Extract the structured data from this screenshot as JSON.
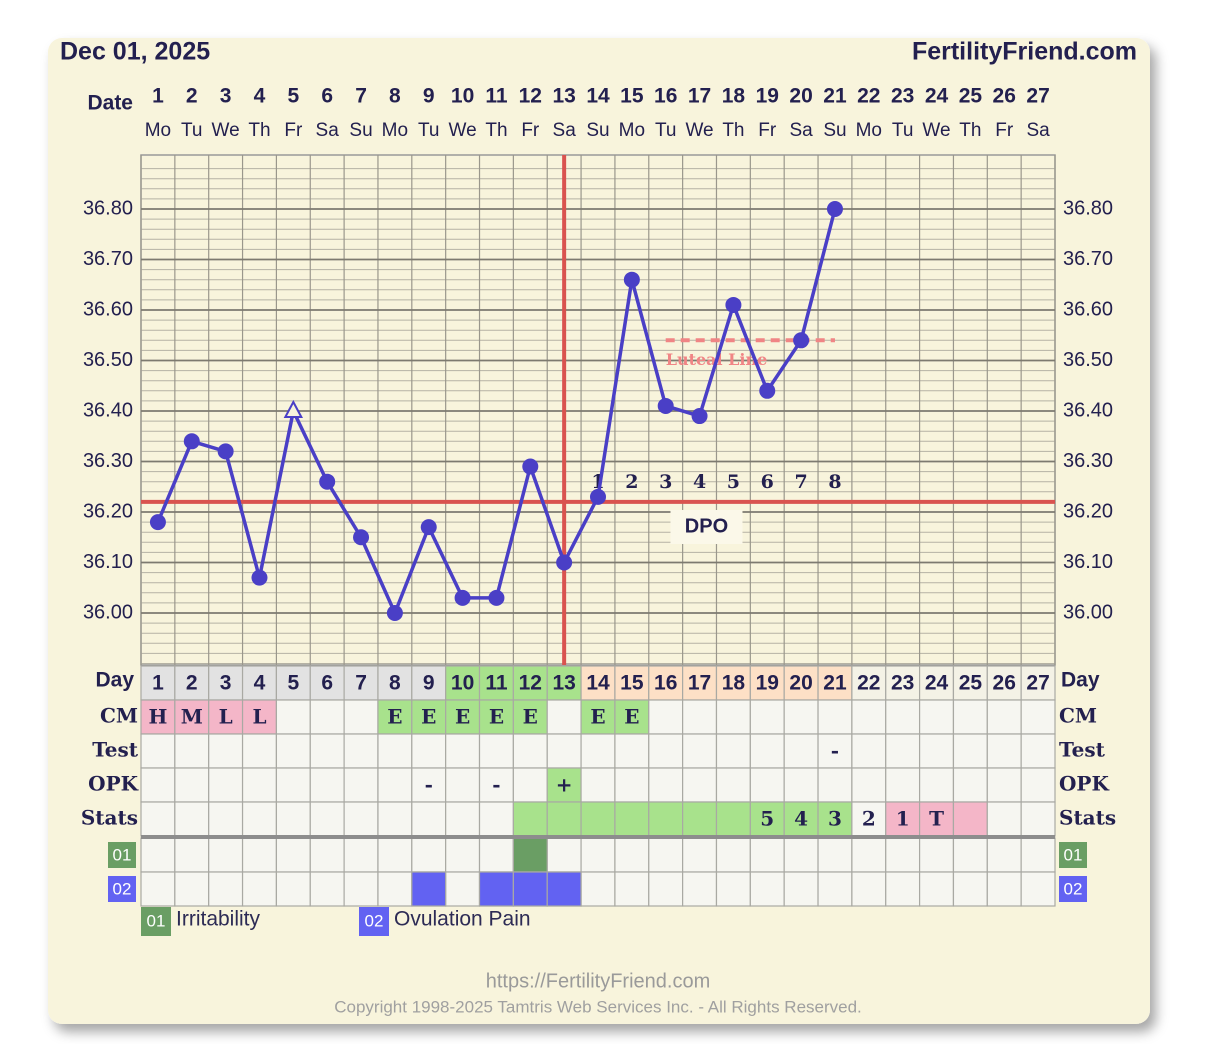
{
  "header": {
    "date": "Dec 01, 2025",
    "site": "FertilityFriend.com"
  },
  "chart_data": {
    "type": "line",
    "x_label": "Date",
    "x": [
      1,
      2,
      3,
      4,
      5,
      6,
      7,
      8,
      9,
      10,
      11,
      12,
      13,
      14,
      15,
      16,
      17,
      18,
      19,
      20,
      21,
      22,
      23,
      24,
      25,
      26,
      27
    ],
    "weekdays": [
      "Mo",
      "Tu",
      "We",
      "Th",
      "Fr",
      "Sa",
      "Su",
      "Mo",
      "Tu",
      "We",
      "Th",
      "Fr",
      "Sa",
      "Su",
      "Mo",
      "Tu",
      "We",
      "Th",
      "Fr",
      "Sa",
      "Su",
      "Mo",
      "Tu",
      "We",
      "Th",
      "Fr",
      "Sa"
    ],
    "xlim": [
      0.5,
      27.5
    ],
    "series": [
      {
        "color": "#4a3fc6",
        "values": [
          36.18,
          36.34,
          36.32,
          36.07,
          36.4,
          36.26,
          36.15,
          36.0,
          36.17,
          36.03,
          36.03,
          36.29,
          36.1,
          36.23,
          36.66,
          36.41,
          36.39,
          36.61,
          36.44,
          36.54,
          36.8,
          null,
          null,
          null,
          null,
          null,
          null
        ],
        "markers": [
          "circle",
          "circle",
          "circle",
          "circle",
          "open-triangle",
          "circle",
          "circle",
          "circle",
          "circle",
          "circle",
          "circle",
          "circle",
          "circle",
          "circle",
          "circle",
          "circle",
          "circle",
          "circle",
          "circle",
          "circle",
          "circle",
          null,
          null,
          null,
          null,
          null,
          null
        ]
      }
    ],
    "ylim": [
      35.9,
      36.9
    ],
    "yticks": [
      {
        "value": 36.0,
        "label": "36.00"
      },
      {
        "value": 36.1,
        "label": "36.10"
      },
      {
        "value": 36.2,
        "label": "36.20"
      },
      {
        "value": 36.3,
        "label": "36.30"
      },
      {
        "value": 36.4,
        "label": "36.40"
      },
      {
        "value": 36.5,
        "label": "36.50"
      },
      {
        "value": 36.6,
        "label": "36.60"
      },
      {
        "value": 36.7,
        "label": "36.70"
      },
      {
        "value": 36.8,
        "label": "36.80"
      }
    ],
    "grid": true,
    "coverline": {
      "value": 36.22,
      "color": "#d9534f"
    },
    "ovulation": {
      "x": 13,
      "color": "#d9534f"
    },
    "luteal_line": {
      "label": "Luteal Line",
      "value": 36.54,
      "x": [
        16,
        21
      ],
      "color": "#f08585"
    },
    "dpo": {
      "title": "DPO",
      "numbers": [
        1,
        2,
        3,
        4,
        5,
        6,
        7,
        8
      ],
      "x": [
        14,
        15,
        16,
        17,
        18,
        19,
        20,
        21
      ]
    }
  },
  "table": {
    "day_label": "Day",
    "day_colors": [
      "#e2e2e2",
      "#e2e2e2",
      "#e2e2e2",
      "#e2e2e2",
      "#e2e2e2",
      "#e2e2e2",
      "#e2e2e2",
      "#e2e2e2",
      "#e2e2e2",
      "#a8e28c",
      "#a8e28c",
      "#a8e28c",
      "#a8e28c",
      "#fde0c6",
      "#fde0c6",
      "#fde0c6",
      "#fde0c6",
      "#fde0c6",
      "#fde0c6",
      "#fde0c6",
      "#fde0c6",
      "#f4f2e6",
      "#f4f2e6",
      "#f4f2e6",
      "#f4f2e6",
      "#f4f2e6",
      "#f4f2e6"
    ],
    "rows": [
      {
        "label": "CM",
        "cells": [
          "H",
          "M",
          "L",
          "L",
          null,
          null,
          null,
          "E",
          "E",
          "E",
          "E",
          "E",
          null,
          "E",
          "E",
          null,
          null,
          null,
          null,
          null,
          null,
          null,
          null,
          null,
          null,
          null,
          null
        ],
        "colors": [
          "#f4b6c8",
          "#f4b6c8",
          "#f4b6c8",
          "#f4b6c8",
          null,
          null,
          null,
          "#a8e28c",
          "#a8e28c",
          "#a8e28c",
          "#a8e28c",
          "#a8e28c",
          null,
          "#a8e28c",
          "#a8e28c",
          null,
          null,
          null,
          null,
          null,
          null,
          null,
          null,
          null,
          null,
          null,
          null
        ]
      },
      {
        "label": "Test",
        "cells": [
          null,
          null,
          null,
          null,
          null,
          null,
          null,
          null,
          null,
          null,
          null,
          null,
          null,
          null,
          null,
          null,
          null,
          null,
          null,
          null,
          "-",
          null,
          null,
          null,
          null,
          null,
          null
        ]
      },
      {
        "label": "OPK",
        "cells": [
          null,
          null,
          null,
          null,
          null,
          null,
          null,
          null,
          "-",
          null,
          "-",
          null,
          "+",
          null,
          null,
          null,
          null,
          null,
          null,
          null,
          null,
          null,
          null,
          null,
          null,
          null,
          null
        ],
        "colors": [
          null,
          null,
          null,
          null,
          null,
          null,
          null,
          null,
          null,
          null,
          null,
          null,
          "#a8e28c",
          null,
          null,
          null,
          null,
          null,
          null,
          null,
          null,
          null,
          null,
          null,
          null,
          null,
          null
        ]
      },
      {
        "label": "Stats",
        "cells": [
          null,
          null,
          null,
          null,
          null,
          null,
          null,
          null,
          null,
          null,
          null,
          null,
          null,
          null,
          null,
          null,
          null,
          null,
          "5",
          "4",
          "3",
          "2",
          "1",
          "T",
          null,
          null,
          null
        ],
        "colors": [
          null,
          null,
          null,
          null,
          null,
          null,
          null,
          null,
          null,
          null,
          null,
          "#a8e28c",
          "#a8e28c",
          "#a8e28c",
          "#a8e28c",
          "#a8e28c",
          "#a8e28c",
          "#a8e28c",
          "#a8e28c",
          "#a8e28c",
          "#a8e28c",
          null,
          "#f4b6c8",
          "#f4b6c8",
          "#f4b6c8",
          null,
          null
        ]
      }
    ],
    "symptoms": [
      {
        "code": "01",
        "name": "Irritability",
        "color": "#6a9e64",
        "days": [
          12
        ]
      },
      {
        "code": "02",
        "name": "Ovulation Pain",
        "color": "#6262f2",
        "days": [
          9,
          11,
          12,
          13
        ]
      }
    ]
  },
  "footer": {
    "url": "https://FertilityFriend.com",
    "copyright": "Copyright 1998-2025 Tamtris Web Services Inc. - All Rights Reserved."
  }
}
